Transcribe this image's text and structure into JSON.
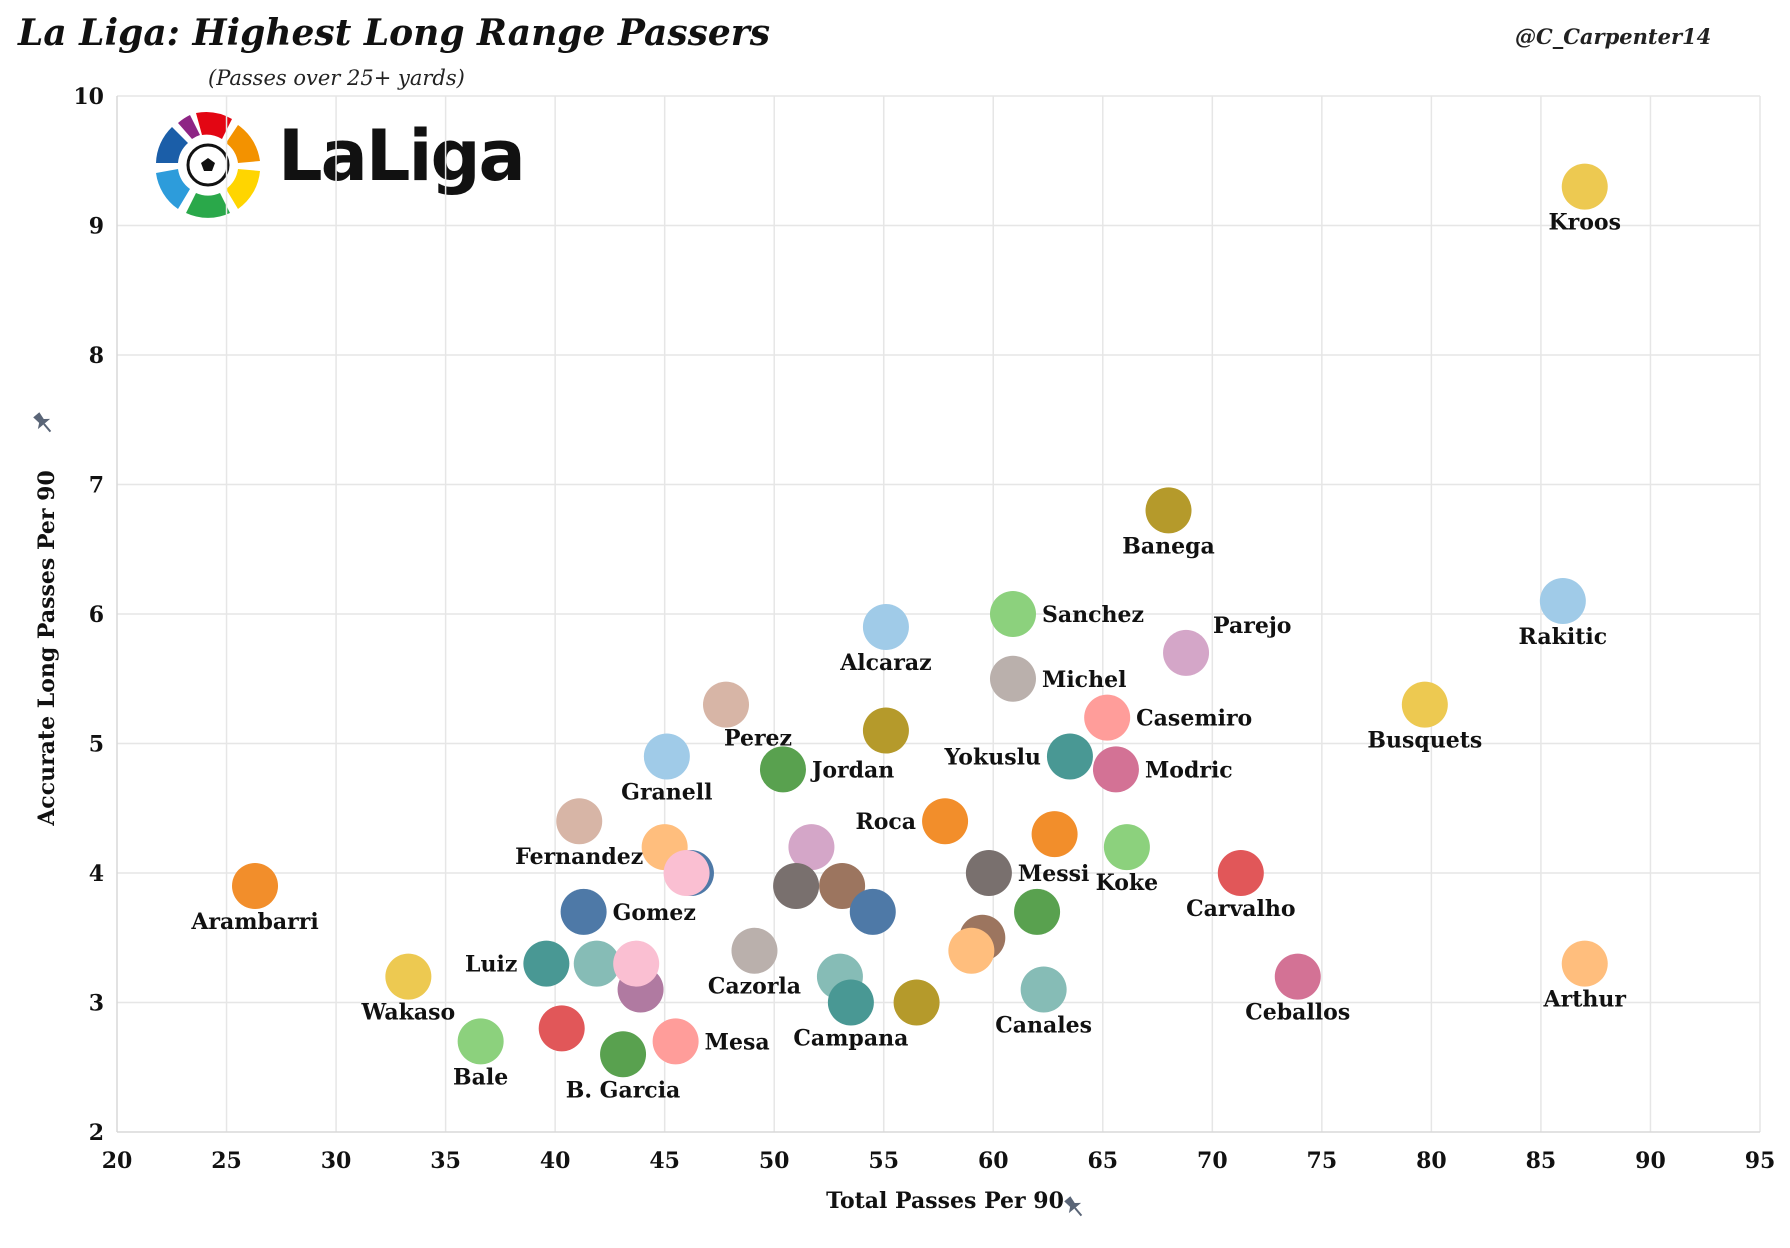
{
  "header": {
    "title": "La Liga: Highest Long Range Passers",
    "subtitle": "(Passes over 25+ yards)",
    "handle": "@C_Carpenter14",
    "logo_text": "LaLiga"
  },
  "chart_data": {
    "type": "scatter",
    "title": "La Liga: Highest Long Range Passers",
    "subtitle": "(Passes over 25+ yards)",
    "xlabel": "Total Passes Per 90",
    "ylabel": "Accurate Long Passes Per 90",
    "xlim": [
      20,
      95
    ],
    "ylim": [
      2,
      10
    ],
    "x_ticks": [
      20,
      25,
      30,
      35,
      40,
      45,
      50,
      55,
      60,
      65,
      70,
      75,
      80,
      85,
      90,
      95
    ],
    "y_ticks": [
      2,
      3,
      4,
      5,
      6,
      7,
      8,
      9,
      10
    ],
    "grid": true,
    "points": [
      {
        "label": "Kroos",
        "x": 87.0,
        "y": 9.3,
        "color": "#edc951",
        "label_pos": "below"
      },
      {
        "label": "Banega",
        "x": 68.0,
        "y": 6.8,
        "color": "#b59a2b",
        "label_pos": "below"
      },
      {
        "label": "Rakitic",
        "x": 86.0,
        "y": 6.1,
        "color": "#a0cbe8",
        "label_pos": "below"
      },
      {
        "label": "Sanchez",
        "x": 60.9,
        "y": 6.0,
        "color": "#8cd17d",
        "label_pos": "right"
      },
      {
        "label": "Parejo",
        "x": 68.8,
        "y": 5.7,
        "color": "#d4a6c8",
        "label_pos": "upper-right"
      },
      {
        "label": "Alcaraz",
        "x": 55.1,
        "y": 5.9,
        "color": "#a0cbe8",
        "label_pos": "below"
      },
      {
        "label": "Michel",
        "x": 60.9,
        "y": 5.5,
        "color": "#bab0ac",
        "label_pos": "right"
      },
      {
        "label": "Busquets",
        "x": 79.7,
        "y": 5.3,
        "color": "#edc951",
        "label_pos": "below"
      },
      {
        "label": "Casemiro",
        "x": 65.2,
        "y": 5.2,
        "color": "#ff9d9a",
        "label_pos": "right"
      },
      {
        "label": "Perez",
        "x": 47.8,
        "y": 5.3,
        "color": "#d7b5a6",
        "label_pos": "below-right"
      },
      {
        "label": "Yokuslu",
        "x": 63.5,
        "y": 4.9,
        "color": "#499894",
        "label_pos": "left"
      },
      {
        "label": "Modric",
        "x": 65.6,
        "y": 4.8,
        "color": "#d37295",
        "label_pos": "right"
      },
      {
        "label": "Jordan",
        "x": 50.4,
        "y": 4.8,
        "color": "#59a14f",
        "label_pos": "right"
      },
      {
        "label": "",
        "x": 55.1,
        "y": 5.1,
        "color": "#b59a2b",
        "label_pos": "none"
      },
      {
        "label": "Granell",
        "x": 45.1,
        "y": 4.9,
        "color": "#a0cbe8",
        "label_pos": "below"
      },
      {
        "label": "Roca",
        "x": 57.8,
        "y": 4.4,
        "color": "#f28e2b",
        "label_pos": "left"
      },
      {
        "label": "",
        "x": 62.8,
        "y": 4.3,
        "color": "#f28e2b",
        "label_pos": "none"
      },
      {
        "label": "Koke",
        "x": 66.1,
        "y": 4.2,
        "color": "#8cd17d",
        "label_pos": "below"
      },
      {
        "label": "Messi",
        "x": 59.8,
        "y": 4.0,
        "color": "#79706e",
        "label_pos": "right"
      },
      {
        "label": "Carvalho",
        "x": 71.3,
        "y": 4.0,
        "color": "#e15759",
        "label_pos": "below"
      },
      {
        "label": "Fernandez",
        "x": 41.1,
        "y": 4.4,
        "color": "#d7b5a6",
        "label_pos": "below"
      },
      {
        "label": "",
        "x": 45.0,
        "y": 4.2,
        "color": "#ffbe7d",
        "label_pos": "none"
      },
      {
        "label": "",
        "x": 46.2,
        "y": 4.0,
        "color": "#4e79a7",
        "label_pos": "none"
      },
      {
        "label": "",
        "x": 46.0,
        "y": 4.0,
        "color": "#fabfd2",
        "label_pos": "none"
      },
      {
        "label": "",
        "x": 51.7,
        "y": 4.2,
        "color": "#d4a6c8",
        "label_pos": "none"
      },
      {
        "label": "",
        "x": 51.0,
        "y": 3.9,
        "color": "#79706e",
        "label_pos": "none"
      },
      {
        "label": "",
        "x": 53.1,
        "y": 3.9,
        "color": "#9c755f",
        "label_pos": "none"
      },
      {
        "label": "",
        "x": 54.5,
        "y": 3.7,
        "color": "#4e79a7",
        "label_pos": "none"
      },
      {
        "label": "",
        "x": 62.0,
        "y": 3.7,
        "color": "#59a14f",
        "label_pos": "none"
      },
      {
        "label": "",
        "x": 59.5,
        "y": 3.5,
        "color": "#9c755f",
        "label_pos": "none"
      },
      {
        "label": "",
        "x": 59.0,
        "y": 3.4,
        "color": "#ffbe7d",
        "label_pos": "none"
      },
      {
        "label": "Arambarri",
        "x": 26.3,
        "y": 3.9,
        "color": "#f28e2b",
        "label_pos": "below"
      },
      {
        "label": "Gomez",
        "x": 41.3,
        "y": 3.7,
        "color": "#4e79a7",
        "label_pos": "right"
      },
      {
        "label": "Cazorla",
        "x": 49.1,
        "y": 3.4,
        "color": "#bab0ac",
        "label_pos": "below"
      },
      {
        "label": "Luiz",
        "x": 39.6,
        "y": 3.3,
        "color": "#499894",
        "label_pos": "left"
      },
      {
        "label": "",
        "x": 41.9,
        "y": 3.3,
        "color": "#86bcb6",
        "label_pos": "none"
      },
      {
        "label": "",
        "x": 43.9,
        "y": 3.1,
        "color": "#b07aa1",
        "label_pos": "none"
      },
      {
        "label": "",
        "x": 43.7,
        "y": 3.3,
        "color": "#fabfd2",
        "label_pos": "none"
      },
      {
        "label": "",
        "x": 53.0,
        "y": 3.2,
        "color": "#86bcb6",
        "label_pos": "none"
      },
      {
        "label": "Campana",
        "x": 53.5,
        "y": 3.0,
        "color": "#499894",
        "label_pos": "below"
      },
      {
        "label": "",
        "x": 56.5,
        "y": 3.0,
        "color": "#b59a2b",
        "label_pos": "none"
      },
      {
        "label": "Canales",
        "x": 62.3,
        "y": 3.1,
        "color": "#86bcb6",
        "label_pos": "below"
      },
      {
        "label": "Ceballos",
        "x": 73.9,
        "y": 3.2,
        "color": "#d37295",
        "label_pos": "below"
      },
      {
        "label": "Arthur",
        "x": 87.0,
        "y": 3.3,
        "color": "#ffbe7d",
        "label_pos": "below"
      },
      {
        "label": "Wakaso",
        "x": 33.3,
        "y": 3.2,
        "color": "#edc951",
        "label_pos": "below"
      },
      {
        "label": "Mesa",
        "x": 45.5,
        "y": 2.7,
        "color": "#ff9d9a",
        "label_pos": "right"
      },
      {
        "label": "",
        "x": 40.3,
        "y": 2.8,
        "color": "#e15759",
        "label_pos": "none"
      },
      {
        "label": "Bale",
        "x": 36.6,
        "y": 2.7,
        "color": "#8cd17d",
        "label_pos": "below"
      },
      {
        "label": "B. Garcia",
        "x": 43.1,
        "y": 2.6,
        "color": "#59a14f",
        "label_pos": "below"
      }
    ]
  }
}
